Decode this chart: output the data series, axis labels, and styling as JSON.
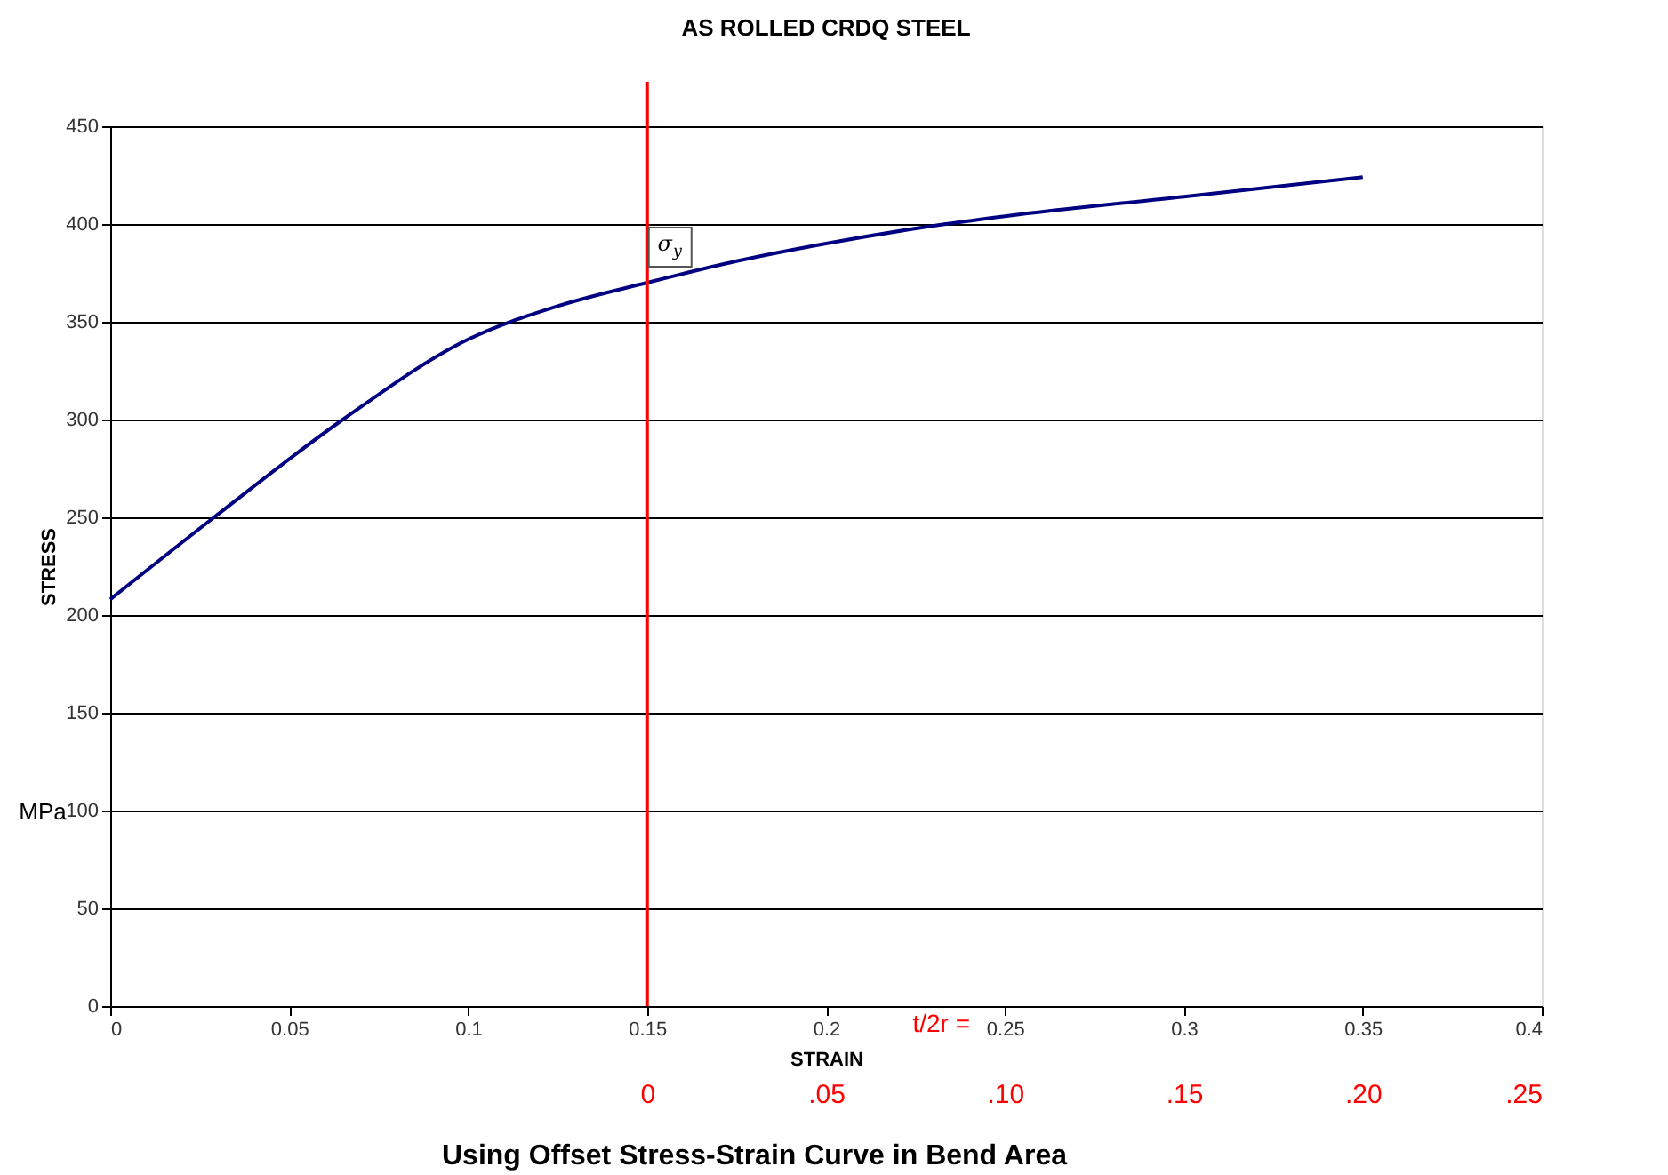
{
  "chart_data": {
    "type": "line",
    "title": "AS ROLLED CRDQ STEEL",
    "xlabel": "STRAIN",
    "ylabel": "STRESS",
    "x2label": "t/2r =",
    "x": [
      0,
      0.029,
      0.065,
      0.1,
      0.125,
      0.15,
      0.175,
      0.2,
      0.2335,
      0.25,
      0.3,
      0.35
    ],
    "series": [
      {
        "color": "#000080",
        "values": [
          208,
          250,
          300,
          341,
          358,
          370,
          381,
          390,
          400,
          404,
          414,
          424
        ]
      }
    ],
    "xlim": [
      0,
      0.4
    ],
    "xticks": [
      0,
      0.05,
      0.1,
      0.15,
      0.2,
      0.25,
      0.3,
      0.35,
      0.4
    ],
    "x2lim": [
      -0.15,
      0.25
    ],
    "x2ticks": [
      {
        "value": 0,
        "label": "0"
      },
      {
        "value": 0.05,
        "label": ".05"
      },
      {
        "value": 0.1,
        "label": ".10"
      },
      {
        "value": 0.15,
        "label": ".15"
      },
      {
        "value": 0.2,
        "label": ".20"
      },
      {
        "value": 0.25,
        "label": ".25"
      }
    ],
    "ylim": [
      0,
      450
    ],
    "yticks": [
      0,
      50,
      100,
      150,
      200,
      250,
      300,
      350,
      400,
      450
    ],
    "ref_lines": [
      {
        "axis": "x",
        "value": 0.15,
        "color": "#ff0000"
      }
    ],
    "annotations": [
      {
        "text": "σ$_{y}$",
        "x": 0.15,
        "y": 370
      },
      "MPa",
      "Using Offset Stress-Strain Curve in Bend Area"
    ],
    "grid": "y",
    "line_style": "solid",
    "marker": "none"
  }
}
